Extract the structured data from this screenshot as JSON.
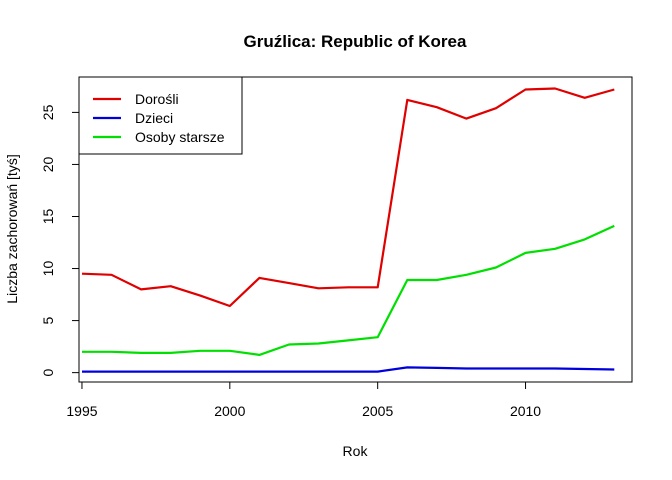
{
  "chart_data": {
    "type": "line",
    "title": "Gruźlica: Republic of Korea",
    "xlabel": "Rok",
    "ylabel": "Liczba zachorowań [tyś]",
    "xlim": [
      1994.9,
      2013.6
    ],
    "ylim": [
      -0.9,
      28.4
    ],
    "x_ticks": [
      1995,
      2000,
      2005,
      2010
    ],
    "y_ticks": [
      0,
      5,
      10,
      15,
      20,
      25
    ],
    "grid": false,
    "legend_position": "top-left",
    "x": [
      1995,
      1996,
      1997,
      1998,
      1999,
      2000,
      2001,
      2002,
      2003,
      2004,
      2005,
      2006,
      2007,
      2008,
      2009,
      2010,
      2011,
      2012,
      2013
    ],
    "series": [
      {
        "name": "Dorośli",
        "color": "#e00000",
        "values": [
          9.5,
          9.4,
          8.0,
          8.3,
          7.4,
          6.4,
          9.1,
          8.6,
          8.1,
          8.2,
          8.2,
          26.2,
          25.5,
          24.4,
          25.4,
          27.2,
          27.3,
          26.4,
          27.2
        ]
      },
      {
        "name": "Dzieci",
        "color": "#0000dd",
        "values": [
          0.1,
          0.1,
          0.1,
          0.1,
          0.1,
          0.1,
          0.1,
          0.1,
          0.1,
          0.1,
          0.1,
          0.5,
          0.45,
          0.4,
          0.4,
          0.4,
          0.4,
          0.35,
          0.3
        ]
      },
      {
        "name": "Osoby starsze",
        "color": "#00e000",
        "values": [
          2.0,
          2.0,
          1.9,
          1.9,
          2.1,
          2.1,
          1.7,
          2.7,
          2.8,
          3.1,
          3.4,
          8.9,
          8.9,
          9.4,
          10.1,
          11.5,
          11.9,
          12.8,
          14.1
        ]
      }
    ]
  }
}
